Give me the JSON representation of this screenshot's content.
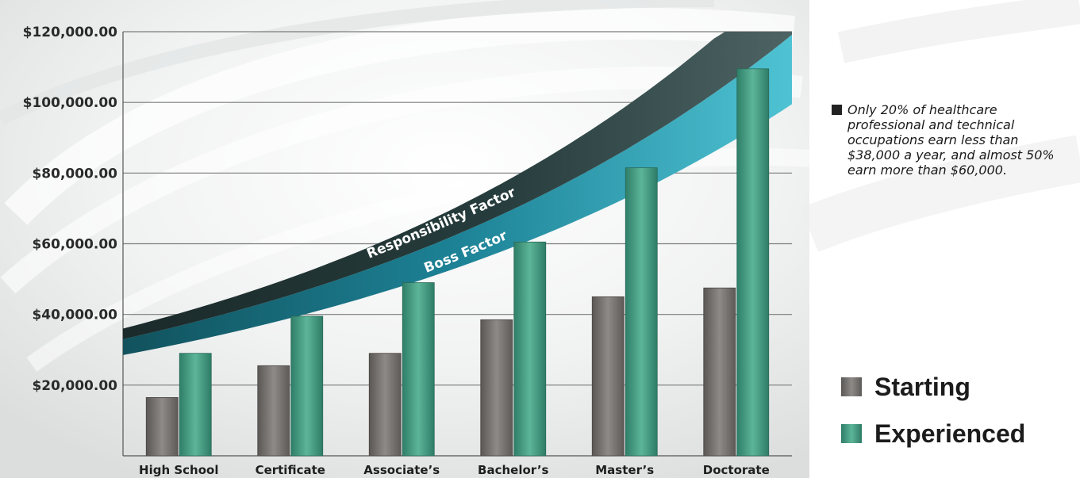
{
  "chart_data": {
    "type": "bar",
    "title": "",
    "xlabel": "",
    "ylabel": "",
    "categories": [
      "High School",
      "Certificate",
      "Associate’s",
      "Bachelor’s",
      "Master’s",
      "Doctorate"
    ],
    "series": [
      {
        "name": "Starting",
        "color": "#6f6b68",
        "values": [
          16500,
          25500,
          29000,
          38500,
          45000,
          47500
        ]
      },
      {
        "name": "Experienced",
        "color": "#3f9b81",
        "values": [
          29000,
          39500,
          49000,
          60500,
          81500,
          109500
        ]
      }
    ],
    "ylim": [
      0,
      120000
    ],
    "yticks": [
      {
        "value": 20000,
        "label": "$20,000.00"
      },
      {
        "value": 40000,
        "label": "$40,000.00"
      },
      {
        "value": 60000,
        "label": "$60,000.00"
      },
      {
        "value": 80000,
        "label": "$80,000.00"
      },
      {
        "value": 100000,
        "label": "$100,000.00"
      },
      {
        "value": 120000,
        "label": "$120,000.00"
      }
    ],
    "grid": true,
    "legend_position": "bottom-right",
    "bands": [
      {
        "label": "Responsibility Factor",
        "color": "#2f4f4f"
      },
      {
        "label": "Boss Factor",
        "color": "#2aa3b8"
      }
    ]
  },
  "note": "Only 20% of healthcare professional and technical occupations earn less than $38,000 a year, and almost 50% earn more than $60,000.",
  "legend": {
    "starting_label": "Starting",
    "experienced_label": "Experienced"
  }
}
